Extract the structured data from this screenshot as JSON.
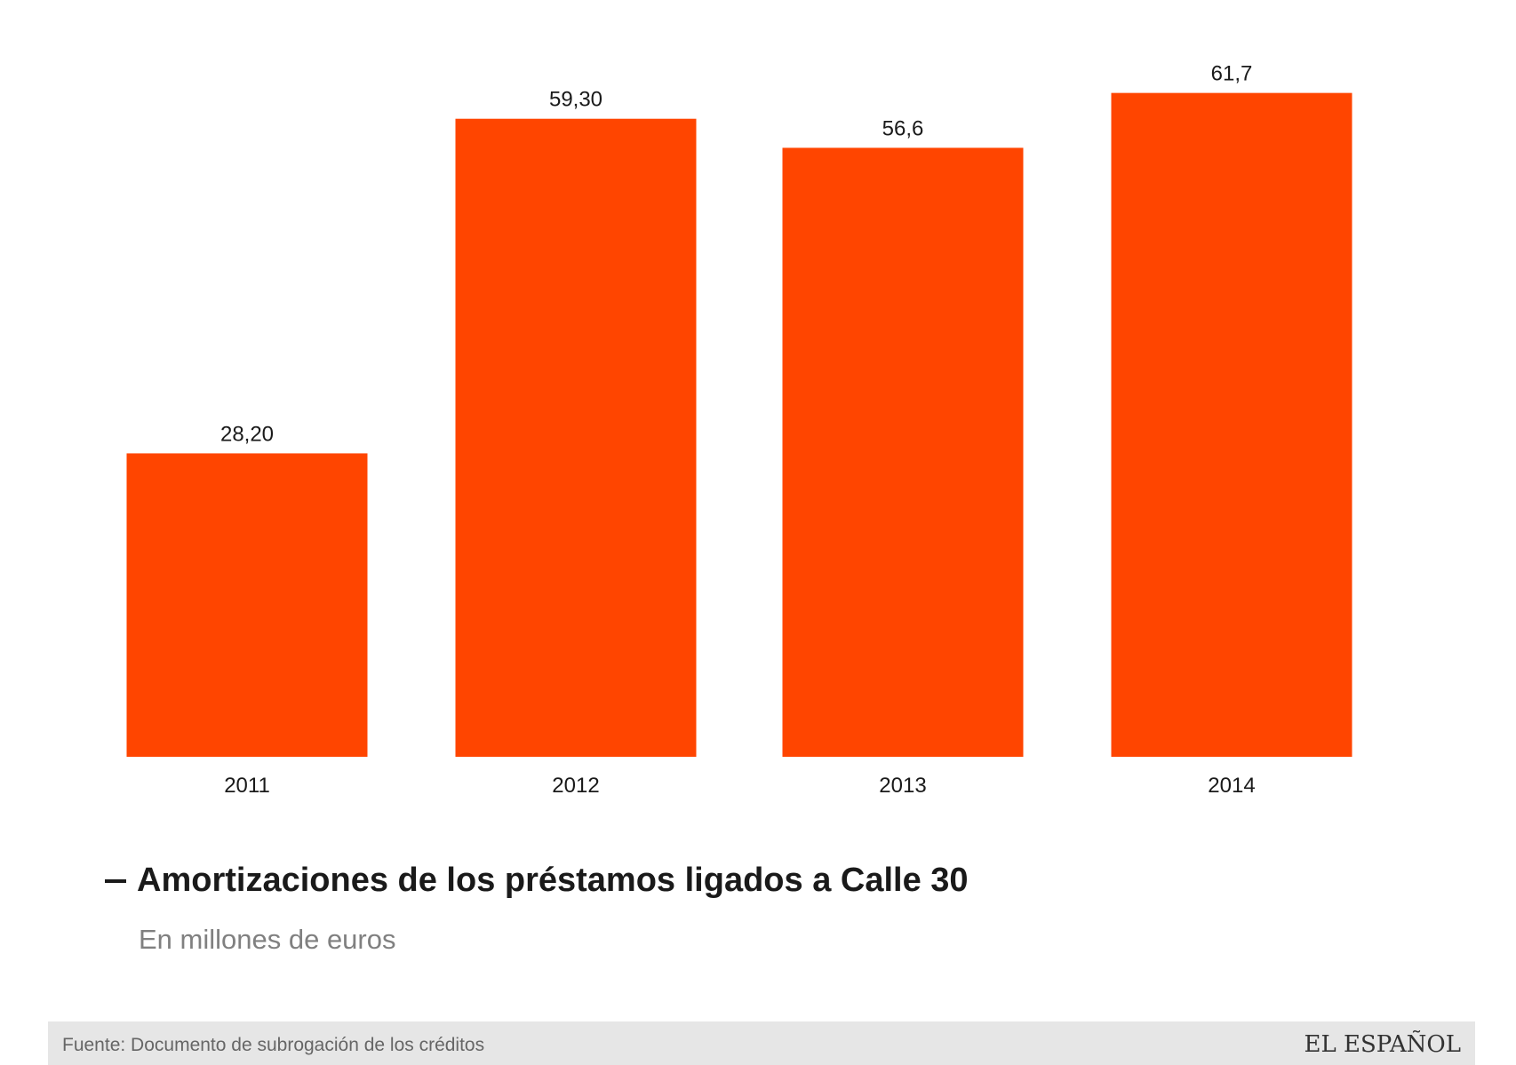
{
  "chart_data": {
    "type": "bar",
    "categories": [
      "2011",
      "2012",
      "2013",
      "2014"
    ],
    "values": [
      28.2,
      59.3,
      56.6,
      61.7
    ],
    "value_labels": [
      "28,20",
      "59,30",
      "56,6",
      "61,7"
    ],
    "title": "Amortizaciones de los préstamos ligados a Calle 30",
    "subtitle": "En millones de euros",
    "ylim": [
      0,
      62
    ],
    "grid": false,
    "legend": "none",
    "bar_color": "#ff4500"
  },
  "footer": {
    "source": "Fuente: Documento de subrogación de los créditos",
    "logo": "EL ESPAÑOL"
  }
}
